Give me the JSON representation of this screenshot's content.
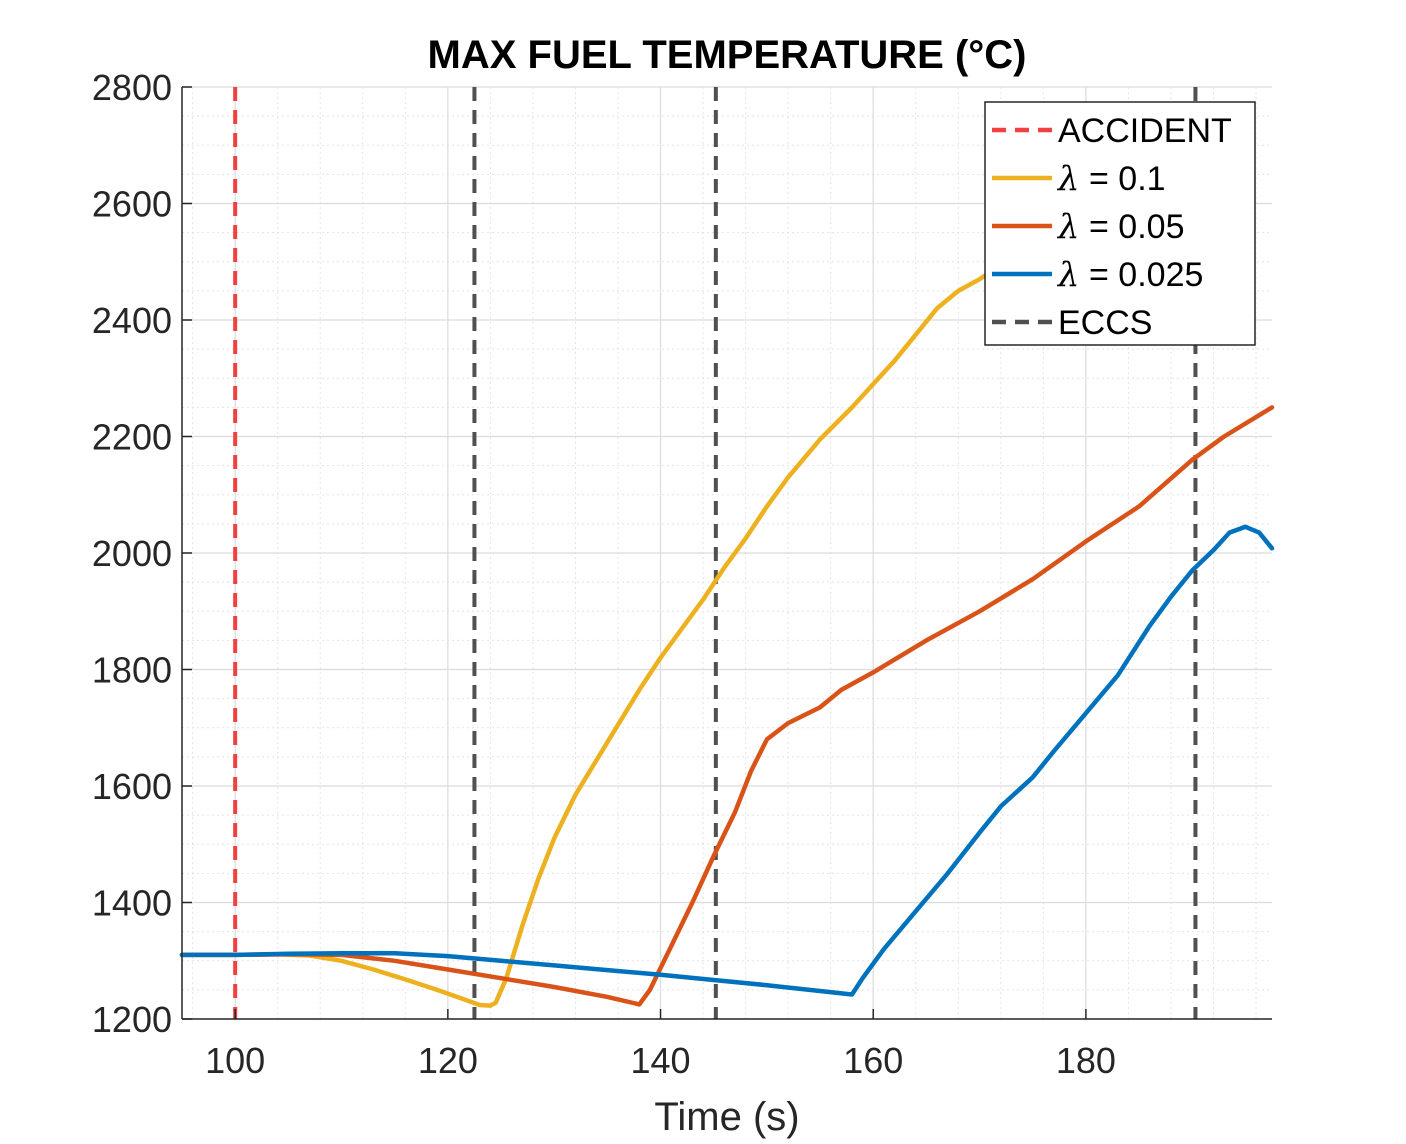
{
  "chart_data": {
    "type": "line",
    "title": "MAX FUEL TEMPERATURE (°C)",
    "xlabel": "Time (s)",
    "ylabel": "",
    "xlim": [
      95,
      197.5
    ],
    "ylim": [
      1200,
      2800
    ],
    "xticks": [
      100,
      120,
      140,
      160,
      180
    ],
    "yticks": [
      1200,
      1400,
      1600,
      1800,
      2000,
      2200,
      2400,
      2600,
      2800
    ],
    "grid": true,
    "minor_grid": true,
    "legend_position": "top-right",
    "vertical_lines": [
      {
        "name": "ACCIDENT",
        "x": [
          100
        ],
        "color": "#f04040",
        "style": "dashed"
      },
      {
        "name": "ECCS",
        "x": [
          122.5,
          145.2,
          190.3
        ],
        "color": "#505050",
        "style": "dashed"
      }
    ],
    "series": [
      {
        "name": "= 0.1",
        "name_symbol": "λ",
        "color": "#edb120",
        "points": [
          [
            95,
            1310
          ],
          [
            100,
            1310
          ],
          [
            104,
            1311
          ],
          [
            107,
            1309
          ],
          [
            110,
            1300
          ],
          [
            113,
            1285
          ],
          [
            116,
            1268
          ],
          [
            119,
            1250
          ],
          [
            121,
            1237
          ],
          [
            123,
            1224
          ],
          [
            124,
            1223
          ],
          [
            124.5,
            1228
          ],
          [
            125.5,
            1270
          ],
          [
            127,
            1360
          ],
          [
            128.5,
            1440
          ],
          [
            130,
            1510
          ],
          [
            132,
            1585
          ],
          [
            134,
            1645
          ],
          [
            136,
            1705
          ],
          [
            138,
            1765
          ],
          [
            140,
            1820
          ],
          [
            142,
            1870
          ],
          [
            144,
            1920
          ],
          [
            146,
            1975
          ],
          [
            148,
            2025
          ],
          [
            150,
            2080
          ],
          [
            152,
            2130
          ],
          [
            155,
            2195
          ],
          [
            158,
            2250
          ],
          [
            160,
            2290
          ],
          [
            162,
            2330
          ],
          [
            164,
            2375
          ],
          [
            166,
            2420
          ],
          [
            168,
            2450
          ],
          [
            170,
            2470
          ],
          [
            172,
            2495
          ],
          [
            174,
            2510
          ]
        ]
      },
      {
        "name": "= 0.05",
        "name_symbol": "λ",
        "color": "#d95319",
        "points": [
          [
            95,
            1310
          ],
          [
            100,
            1310
          ],
          [
            105,
            1311
          ],
          [
            110,
            1310
          ],
          [
            115,
            1300
          ],
          [
            120,
            1285
          ],
          [
            125,
            1270
          ],
          [
            130,
            1255
          ],
          [
            135,
            1238
          ],
          [
            138,
            1225
          ],
          [
            139,
            1250
          ],
          [
            141,
            1325
          ],
          [
            143,
            1400
          ],
          [
            145,
            1480
          ],
          [
            147,
            1555
          ],
          [
            148.5,
            1625
          ],
          [
            150,
            1680
          ],
          [
            152,
            1708
          ],
          [
            155,
            1735
          ],
          [
            157,
            1765
          ],
          [
            160,
            1795
          ],
          [
            165,
            1850
          ],
          [
            170,
            1900
          ],
          [
            175,
            1955
          ],
          [
            180,
            2020
          ],
          [
            185,
            2080
          ],
          [
            190,
            2160
          ],
          [
            193,
            2200
          ],
          [
            197.5,
            2250
          ]
        ]
      },
      {
        "name": "= 0.025",
        "name_symbol": "λ",
        "color": "#0072bd",
        "points": [
          [
            95,
            1310
          ],
          [
            100,
            1310
          ],
          [
            105,
            1312
          ],
          [
            110,
            1313
          ],
          [
            115,
            1313
          ],
          [
            120,
            1308
          ],
          [
            125,
            1300
          ],
          [
            130,
            1292
          ],
          [
            135,
            1284
          ],
          [
            140,
            1276
          ],
          [
            145,
            1267
          ],
          [
            150,
            1258
          ],
          [
            155,
            1248
          ],
          [
            158,
            1242
          ],
          [
            159,
            1270
          ],
          [
            161,
            1320
          ],
          [
            164,
            1385
          ],
          [
            167,
            1450
          ],
          [
            170,
            1520
          ],
          [
            172,
            1565
          ],
          [
            175,
            1615
          ],
          [
            177,
            1660
          ],
          [
            180,
            1725
          ],
          [
            183,
            1790
          ],
          [
            186,
            1875
          ],
          [
            188,
            1925
          ],
          [
            190,
            1970
          ],
          [
            192,
            2005
          ],
          [
            193.5,
            2035
          ],
          [
            195,
            2045
          ],
          [
            196.3,
            2035
          ],
          [
            197.5,
            2008
          ]
        ]
      }
    ]
  },
  "legend": {
    "items": [
      {
        "label": "ACCIDENT",
        "color": "#f04040",
        "dashed": true
      },
      {
        "symbol": "λ",
        "label": " = 0.1",
        "color": "#edb120",
        "dashed": false
      },
      {
        "symbol": "λ",
        "label": " = 0.05",
        "color": "#d95319",
        "dashed": false
      },
      {
        "symbol": "λ",
        "label": " = 0.025",
        "color": "#0072bd",
        "dashed": false
      },
      {
        "label": "ECCS",
        "color": "#505050",
        "dashed": true
      }
    ]
  }
}
